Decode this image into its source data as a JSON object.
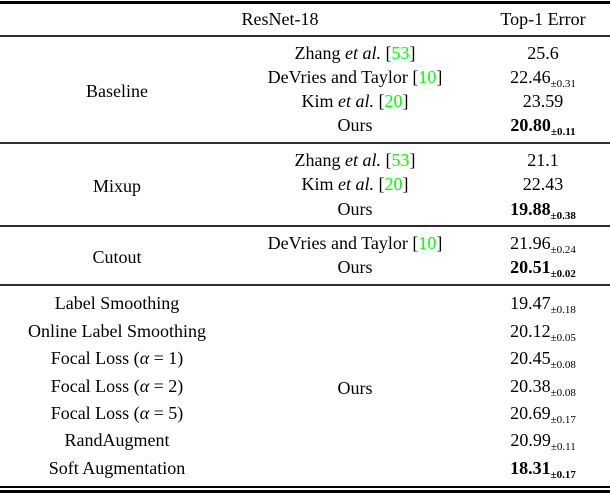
{
  "colors": {
    "citation_green": "#00ff00",
    "rule_black": "#000000"
  },
  "header": {
    "model": "ResNet-18",
    "metric": "Top-1 Error"
  },
  "groups": [
    {
      "id": "baseline",
      "label": "Baseline",
      "label_position": "first",
      "rows": [
        {
          "m_pre": "Zhang ",
          "m_em": "et al.",
          "m_post": "",
          "cite": "53",
          "val": "25.6",
          "sub": "",
          "bold": false
        },
        {
          "m_pre": "DeVries and Taylor",
          "m_em": "",
          "m_post": "",
          "cite": "10",
          "val": "22.46",
          "sub": "±0.31",
          "bold": false
        },
        {
          "m_pre": "Kim ",
          "m_em": "et al.",
          "m_post": "",
          "cite": "20",
          "val": "23.59",
          "sub": "",
          "bold": false
        },
        {
          "m_pre": "Ours",
          "m_em": "",
          "m_post": "",
          "cite": "",
          "val": "20.80",
          "sub": "±0.11",
          "bold": true
        }
      ]
    },
    {
      "id": "mixup",
      "label": "Mixup",
      "label_position": "first",
      "rows": [
        {
          "m_pre": "Zhang ",
          "m_em": "et al.",
          "m_post": "",
          "cite": "53",
          "val": "21.1",
          "sub": "",
          "bold": false
        },
        {
          "m_pre": "Kim ",
          "m_em": "et al.",
          "m_post": "",
          "cite": "20",
          "val": "22.43",
          "sub": "",
          "bold": false
        },
        {
          "m_pre": "Ours",
          "m_em": "",
          "m_post": "",
          "cite": "",
          "val": "19.88",
          "sub": "±0.38",
          "bold": true
        }
      ]
    },
    {
      "id": "cutout",
      "label": "Cutout",
      "label_position": "first",
      "rows": [
        {
          "m_pre": "DeVries and Taylor",
          "m_em": "",
          "m_post": "",
          "cite": "10",
          "val": "21.96",
          "sub": "±0.24",
          "bold": false
        },
        {
          "m_pre": "Ours",
          "m_em": "",
          "m_post": "",
          "cite": "",
          "val": "20.51",
          "sub": "±0.02",
          "bold": true
        }
      ]
    },
    {
      "id": "ours-methods",
      "label": "Ours",
      "label_position": "middle",
      "rows": [
        {
          "m_pre": "Label Smoothing",
          "m_em": "",
          "m_post": "",
          "cite": "",
          "val": "19.47",
          "sub": "±0.18",
          "bold": false
        },
        {
          "m_pre": "Online Label Smoothing",
          "m_em": "",
          "m_post": "",
          "cite": "",
          "val": "20.12",
          "sub": "±0.05",
          "bold": false
        },
        {
          "m_pre": "Focal Loss (",
          "m_em": "α",
          "m_post": " = 1)",
          "cite": "",
          "val": "20.45",
          "sub": "±0.08",
          "bold": false
        },
        {
          "m_pre": "Focal Loss (",
          "m_em": "α",
          "m_post": " = 2)",
          "cite": "",
          "val": "20.38",
          "sub": "±0.08",
          "bold": false
        },
        {
          "m_pre": "Focal Loss (",
          "m_em": "α",
          "m_post": " = 5)",
          "cite": "",
          "val": "20.69",
          "sub": "±0.17",
          "bold": false
        },
        {
          "m_pre": "RandAugment",
          "m_em": "",
          "m_post": "",
          "cite": "",
          "val": "20.99",
          "sub": "±0.11",
          "bold": false
        },
        {
          "m_pre": "Soft Augmentation",
          "m_em": "",
          "m_post": "",
          "cite": "",
          "val": "18.31",
          "sub": "±0.17",
          "bold": true
        }
      ]
    }
  ]
}
